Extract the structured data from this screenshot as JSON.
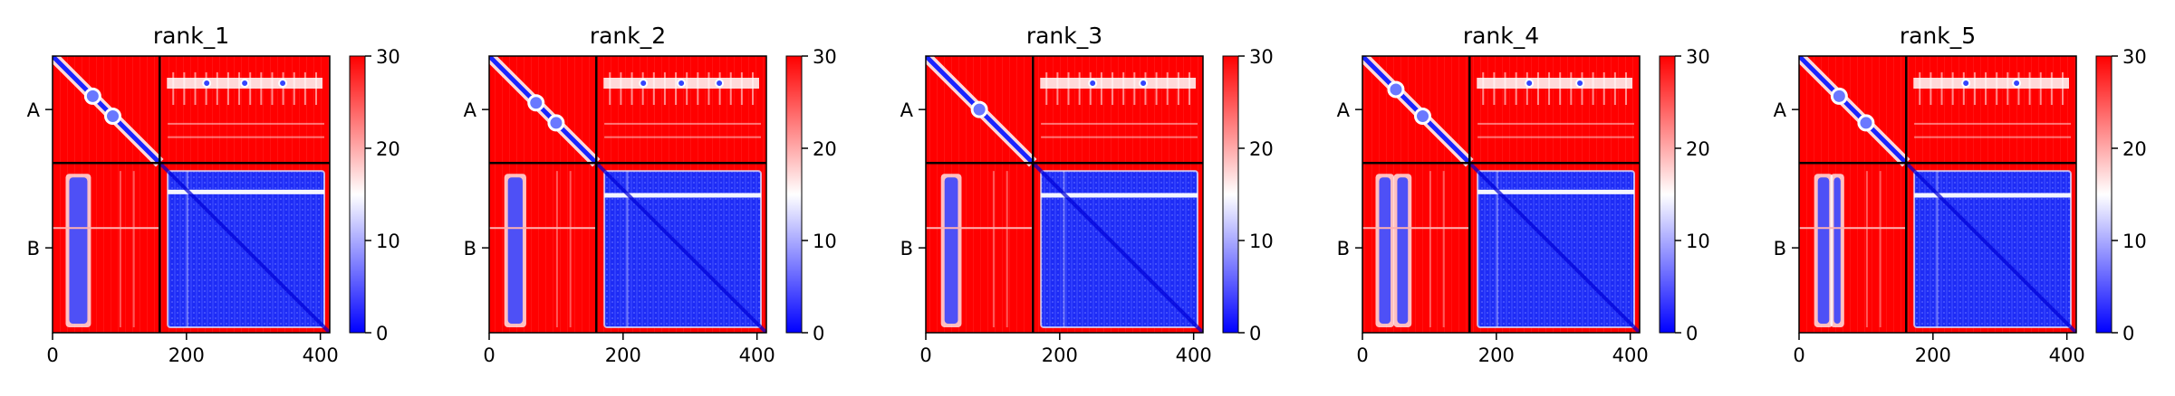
{
  "figure": {
    "background": "#ffffff"
  },
  "chart_data": [
    {
      "type": "heatmap",
      "title": "rank_1",
      "xlabel": "",
      "ylabel": "",
      "xlim": [
        0,
        414
      ],
      "x_ticks": [
        0,
        200,
        400
      ],
      "y_ticks": [
        "A",
        "B"
      ],
      "chains": [
        {
          "name": "A",
          "length": 160
        },
        {
          "name": "B",
          "length": 254
        }
      ],
      "colorbar": {
        "min": 0,
        "max": 30,
        "ticks": [
          0,
          10,
          20,
          30
        ],
        "colors": [
          "#0000ff",
          "#ffffff",
          "#ff0000"
        ]
      },
      "features": {
        "b_to_a_stripes": [
          [
            25,
            52
          ]
        ],
        "a_hot_offsets": [
          60,
          90
        ],
        "a_spots": [
          40,
          80,
          110
        ],
        "b_lines": [
          100,
          120,
          200
        ]
      }
    },
    {
      "type": "heatmap",
      "title": "rank_2",
      "xlabel": "",
      "ylabel": "",
      "xlim": [
        0,
        414
      ],
      "x_ticks": [
        0,
        200,
        400
      ],
      "y_ticks": [
        "A",
        "B"
      ],
      "chains": [
        {
          "name": "A",
          "length": 160
        },
        {
          "name": "B",
          "length": 254
        }
      ],
      "colorbar": {
        "min": 0,
        "max": 30,
        "ticks": [
          0,
          10,
          20,
          30
        ],
        "colors": [
          "#0000ff",
          "#ffffff",
          "#ff0000"
        ]
      },
      "features": {
        "b_to_a_stripes": [
          [
            28,
            50
          ]
        ],
        "a_hot_offsets": [
          70,
          100
        ],
        "a_spots": [
          40,
          80,
          120
        ],
        "b_lines": [
          100,
          120,
          205
        ]
      }
    },
    {
      "type": "heatmap",
      "title": "rank_3",
      "xlabel": "",
      "ylabel": "",
      "xlim": [
        0,
        414
      ],
      "x_ticks": [
        0,
        200,
        400
      ],
      "y_ticks": [
        "A",
        "B"
      ],
      "chains": [
        {
          "name": "A",
          "length": 160
        },
        {
          "name": "B",
          "length": 254
        }
      ],
      "colorbar": {
        "min": 0,
        "max": 30,
        "ticks": [
          0,
          10,
          20,
          30
        ],
        "colors": [
          "#0000ff",
          "#ffffff",
          "#ff0000"
        ]
      },
      "features": {
        "b_to_a_stripes": [
          [
            28,
            48
          ]
        ],
        "a_hot_offsets": [
          80
        ],
        "a_spots": [
          40,
          85
        ],
        "b_lines": [
          100,
          120,
          205
        ]
      }
    },
    {
      "type": "heatmap",
      "title": "rank_4",
      "xlabel": "",
      "ylabel": "",
      "xlim": [
        0,
        414
      ],
      "x_ticks": [
        0,
        200,
        400
      ],
      "y_ticks": [
        "A",
        "B"
      ],
      "chains": [
        {
          "name": "A",
          "length": 160
        },
        {
          "name": "B",
          "length": 254
        }
      ],
      "colorbar": {
        "min": 0,
        "max": 30,
        "ticks": [
          0,
          10,
          20,
          30
        ],
        "colors": [
          "#0000ff",
          "#ffffff",
          "#ff0000"
        ]
      },
      "features": {
        "b_to_a_stripes": [
          [
            25,
            42
          ],
          [
            52,
            68
          ]
        ],
        "a_hot_offsets": [
          50,
          90
        ],
        "a_spots": [
          40,
          80
        ],
        "b_lines": [
          100,
          120,
          200
        ]
      }
    },
    {
      "type": "heatmap",
      "title": "rank_5",
      "xlabel": "",
      "ylabel": "",
      "xlim": [
        0,
        414
      ],
      "x_ticks": [
        0,
        200,
        400
      ],
      "y_ticks": [
        "A",
        "B"
      ],
      "chains": [
        {
          "name": "A",
          "length": 160
        },
        {
          "name": "B",
          "length": 254
        }
      ],
      "colorbar": {
        "min": 0,
        "max": 30,
        "ticks": [
          0,
          10,
          20,
          30
        ],
        "colors": [
          "#0000ff",
          "#ffffff",
          "#ff0000"
        ]
      },
      "features": {
        "b_to_a_stripes": [
          [
            28,
            45
          ],
          [
            52,
            62
          ]
        ],
        "a_hot_offsets": [
          60,
          100
        ],
        "a_spots": [
          40,
          80
        ],
        "b_lines": [
          100,
          120,
          205
        ]
      }
    }
  ]
}
